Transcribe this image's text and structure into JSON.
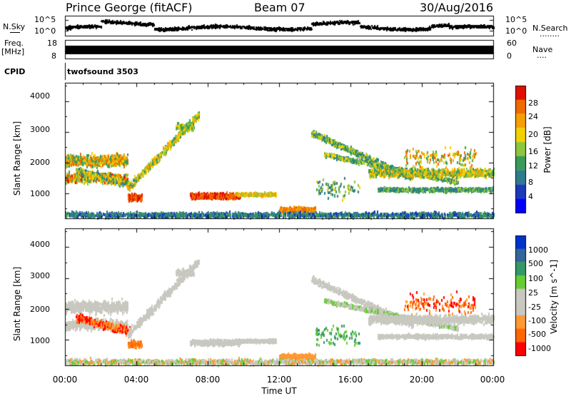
{
  "header": {
    "station": "Prince George (fitACF)",
    "beam": "Beam 07",
    "date": "30/Aug/2016"
  },
  "side_labels": {
    "n_sky": "N.Sky",
    "n_search": "N.Search",
    "n_search_dots": "........",
    "freq_line1": "Freq.",
    "freq_line2": "[MHz]",
    "nave": "Nave",
    "nave_dots": "....",
    "cpid": "CPID"
  },
  "cpid_text": "twofsound 3503",
  "noise_panel": {
    "left_ticks": [
      "10^5",
      "10^0"
    ],
    "right_ticks": [
      "10^5",
      "10^0"
    ]
  },
  "freq_panel": {
    "left_ticks": [
      "18",
      "8"
    ],
    "right_ticks": [
      "60",
      "0"
    ]
  },
  "colors": {
    "power": [
      "#0000ff",
      "#1a3ab8",
      "#2e7b8e",
      "#3a9a5a",
      "#8dc63f",
      "#f2d100",
      "#f5a000",
      "#f06a00",
      "#e01000"
    ],
    "velocity": [
      "#ff0000",
      "#ff6600",
      "#ff9933",
      "#c8c8c0",
      "#c8c8c0",
      "#66cc33",
      "#339966",
      "#336699",
      "#0033cc"
    ]
  },
  "chart_data": [
    {
      "type": "heatmap",
      "name": "power",
      "ylabel": "Slant Range [km]",
      "yticks": [
        "1000",
        "2000",
        "3000",
        "4000"
      ],
      "ylim": [
        180,
        4600
      ],
      "xlim": [
        0,
        24
      ],
      "colorbar_label": "Power [dB]",
      "colorbar_ticks": [
        "4",
        "8",
        "12",
        "16",
        "20",
        "24",
        "28"
      ],
      "colorbar_range": [
        0,
        30
      ]
    },
    {
      "type": "heatmap",
      "name": "velocity",
      "ylabel": "Slant Range [km]",
      "yticks": [
        "1000",
        "2000",
        "3000",
        "4000"
      ],
      "ylim": [
        180,
        4600
      ],
      "xlim": [
        0,
        24
      ],
      "colorbar_label": "Velocity [m s^-1]",
      "colorbar_ticks": [
        "1000",
        "500",
        "100",
        "25",
        "-25",
        "-100",
        "-500",
        "-1000"
      ]
    }
  ],
  "xaxis": {
    "ticks": [
      "00:00",
      "04:00",
      "08:00",
      "12:00",
      "16:00",
      "20:00",
      "00:00"
    ],
    "label": "Time UT"
  }
}
